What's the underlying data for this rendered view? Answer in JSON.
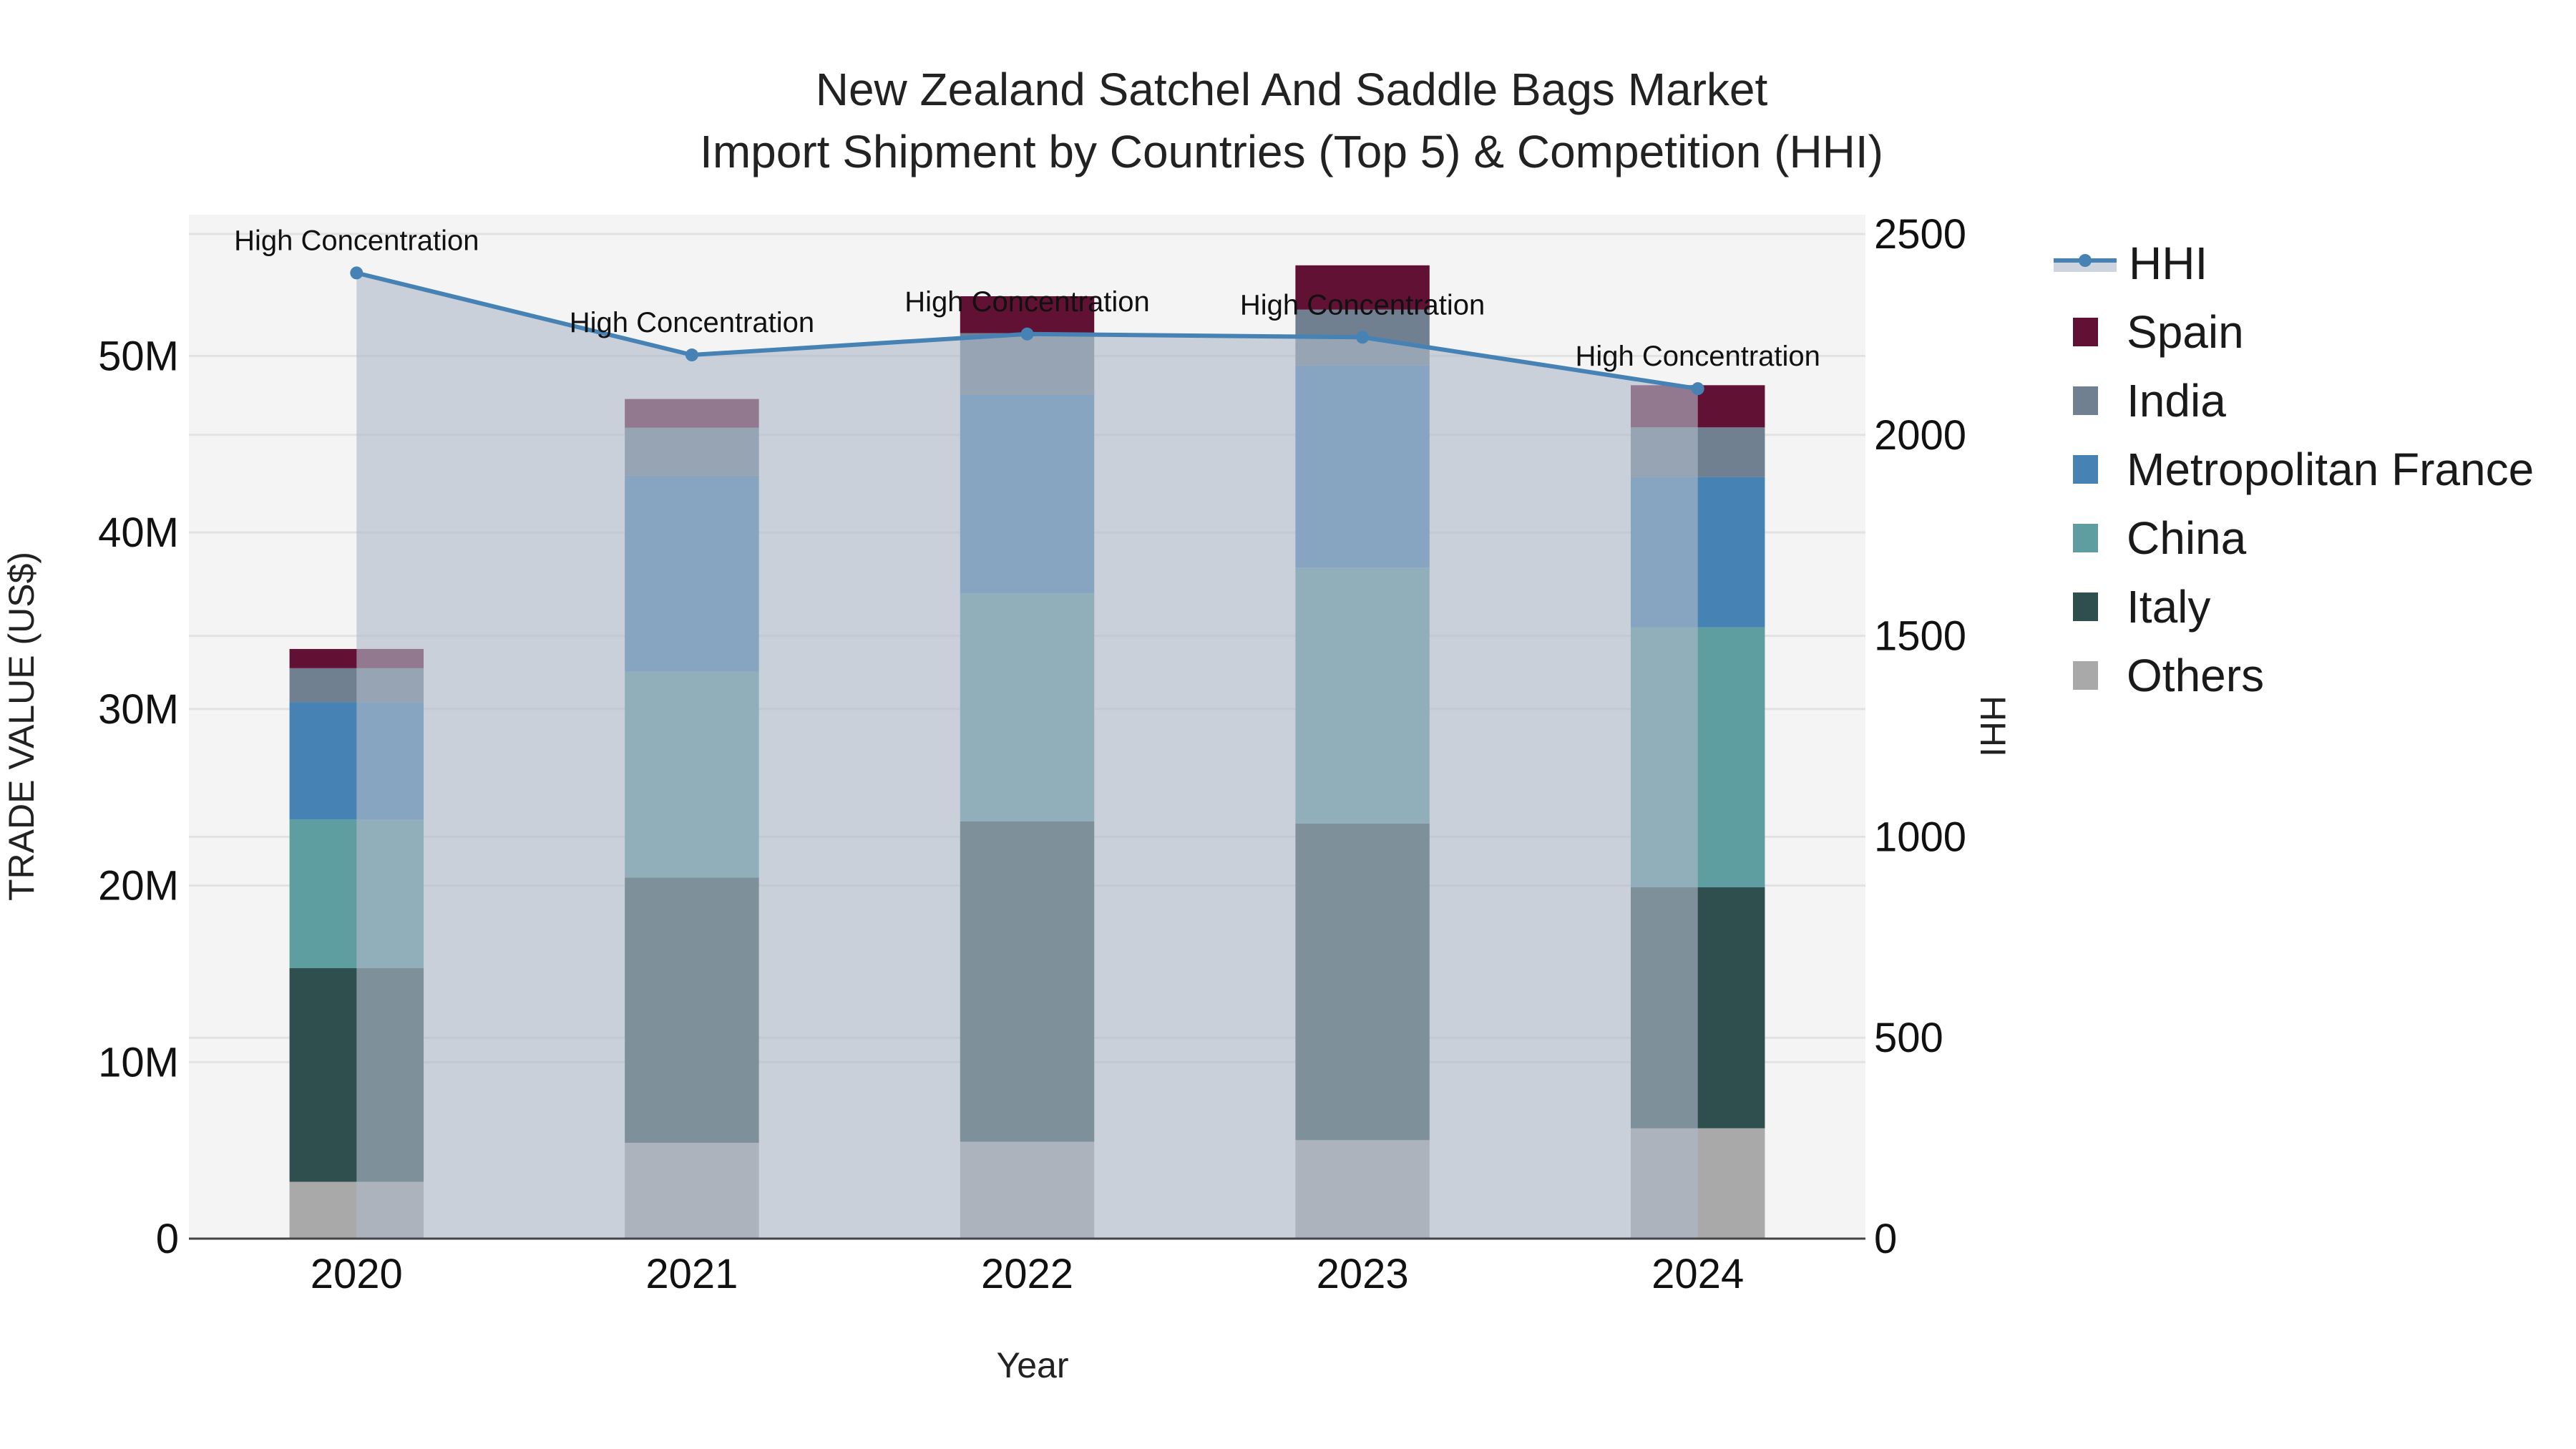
{
  "title": {
    "line1": "New Zealand Satchel And Saddle Bags Market",
    "line2": "Import Shipment by Countries (Top 5) & Competition (HHI)"
  },
  "axes": {
    "x_title": "Year",
    "y_title": "TRADE VALUE (US$)",
    "y2_title": "HHI",
    "y_ticks": [
      "0",
      "10M",
      "20M",
      "30M",
      "40M",
      "50M"
    ],
    "y2_ticks": [
      "0",
      "500",
      "1000",
      "1500",
      "2000",
      "2500"
    ]
  },
  "legend": {
    "items": [
      {
        "label": "HHI",
        "type": "line",
        "color": "#4682b4"
      },
      {
        "label": "Spain",
        "type": "bar",
        "color": "#611234"
      },
      {
        "label": "India",
        "type": "bar",
        "color": "#708090"
      },
      {
        "label": "Metropolitan France",
        "type": "bar",
        "color": "#4682b4"
      },
      {
        "label": "China",
        "type": "bar",
        "color": "#5f9ea0"
      },
      {
        "label": "Italy",
        "type": "bar",
        "color": "#2f4f4f"
      },
      {
        "label": "Others",
        "type": "bar",
        "color": "#a9a9a9"
      }
    ]
  },
  "annotation_text": "High Concentration",
  "colors": {
    "plot_bg": "#f4f4f4",
    "grid": "#e2e2e2",
    "hhi_line": "#4682b4",
    "hhi_fill": "rgba(176,186,202,0.62)"
  },
  "chart_data": {
    "type": "bar",
    "subtype": "stacked bar with line overlay (secondary axis)",
    "title": "New Zealand Satchel And Saddle Bags Market Import Shipment by Countries (Top 5) & Competition (HHI)",
    "xlabel": "Year",
    "ylabel": "TRADE VALUE (US$)",
    "y2label": "HHI",
    "categories": [
      "2020",
      "2021",
      "2022",
      "2023",
      "2024"
    ],
    "ylim": [
      0,
      58000000
    ],
    "y2lim": [
      0,
      2548
    ],
    "grid": true,
    "legend_position": "right",
    "series": [
      {
        "name": "Others",
        "type": "bar",
        "color": "#a9a9a9",
        "values": [
          3220000,
          5430000,
          5490000,
          5580000,
          6250000
        ]
      },
      {
        "name": "Italy",
        "type": "bar",
        "color": "#2f4f4f",
        "values": [
          12100000,
          15020000,
          18150000,
          17930000,
          13650000
        ]
      },
      {
        "name": "China",
        "type": "bar",
        "color": "#5f9ea0",
        "values": [
          8430000,
          11660000,
          12910000,
          14500000,
          14730000
        ]
      },
      {
        "name": "Metropolitan France",
        "type": "bar",
        "color": "#4682b4",
        "values": [
          6630000,
          11100000,
          11260000,
          11440000,
          8510000
        ]
      },
      {
        "name": "India",
        "type": "bar",
        "color": "#708090",
        "values": [
          1930000,
          2720000,
          3480000,
          3170000,
          2810000
        ]
      },
      {
        "name": "Spain",
        "type": "bar",
        "color": "#611234",
        "values": [
          1090000,
          1630000,
          2090000,
          2510000,
          2390000
        ]
      },
      {
        "name": "HHI",
        "type": "line",
        "axis": "y2",
        "color": "#4682b4",
        "fill": "tozeroy",
        "values": [
          2403,
          2199,
          2251,
          2243,
          2115
        ]
      }
    ],
    "annotations": [
      {
        "x": "2020",
        "text": "High Concentration"
      },
      {
        "x": "2021",
        "text": "High Concentration"
      },
      {
        "x": "2022",
        "text": "High Concentration"
      },
      {
        "x": "2023",
        "text": "High Concentration"
      },
      {
        "x": "2024",
        "text": "High Concentration"
      }
    ]
  }
}
